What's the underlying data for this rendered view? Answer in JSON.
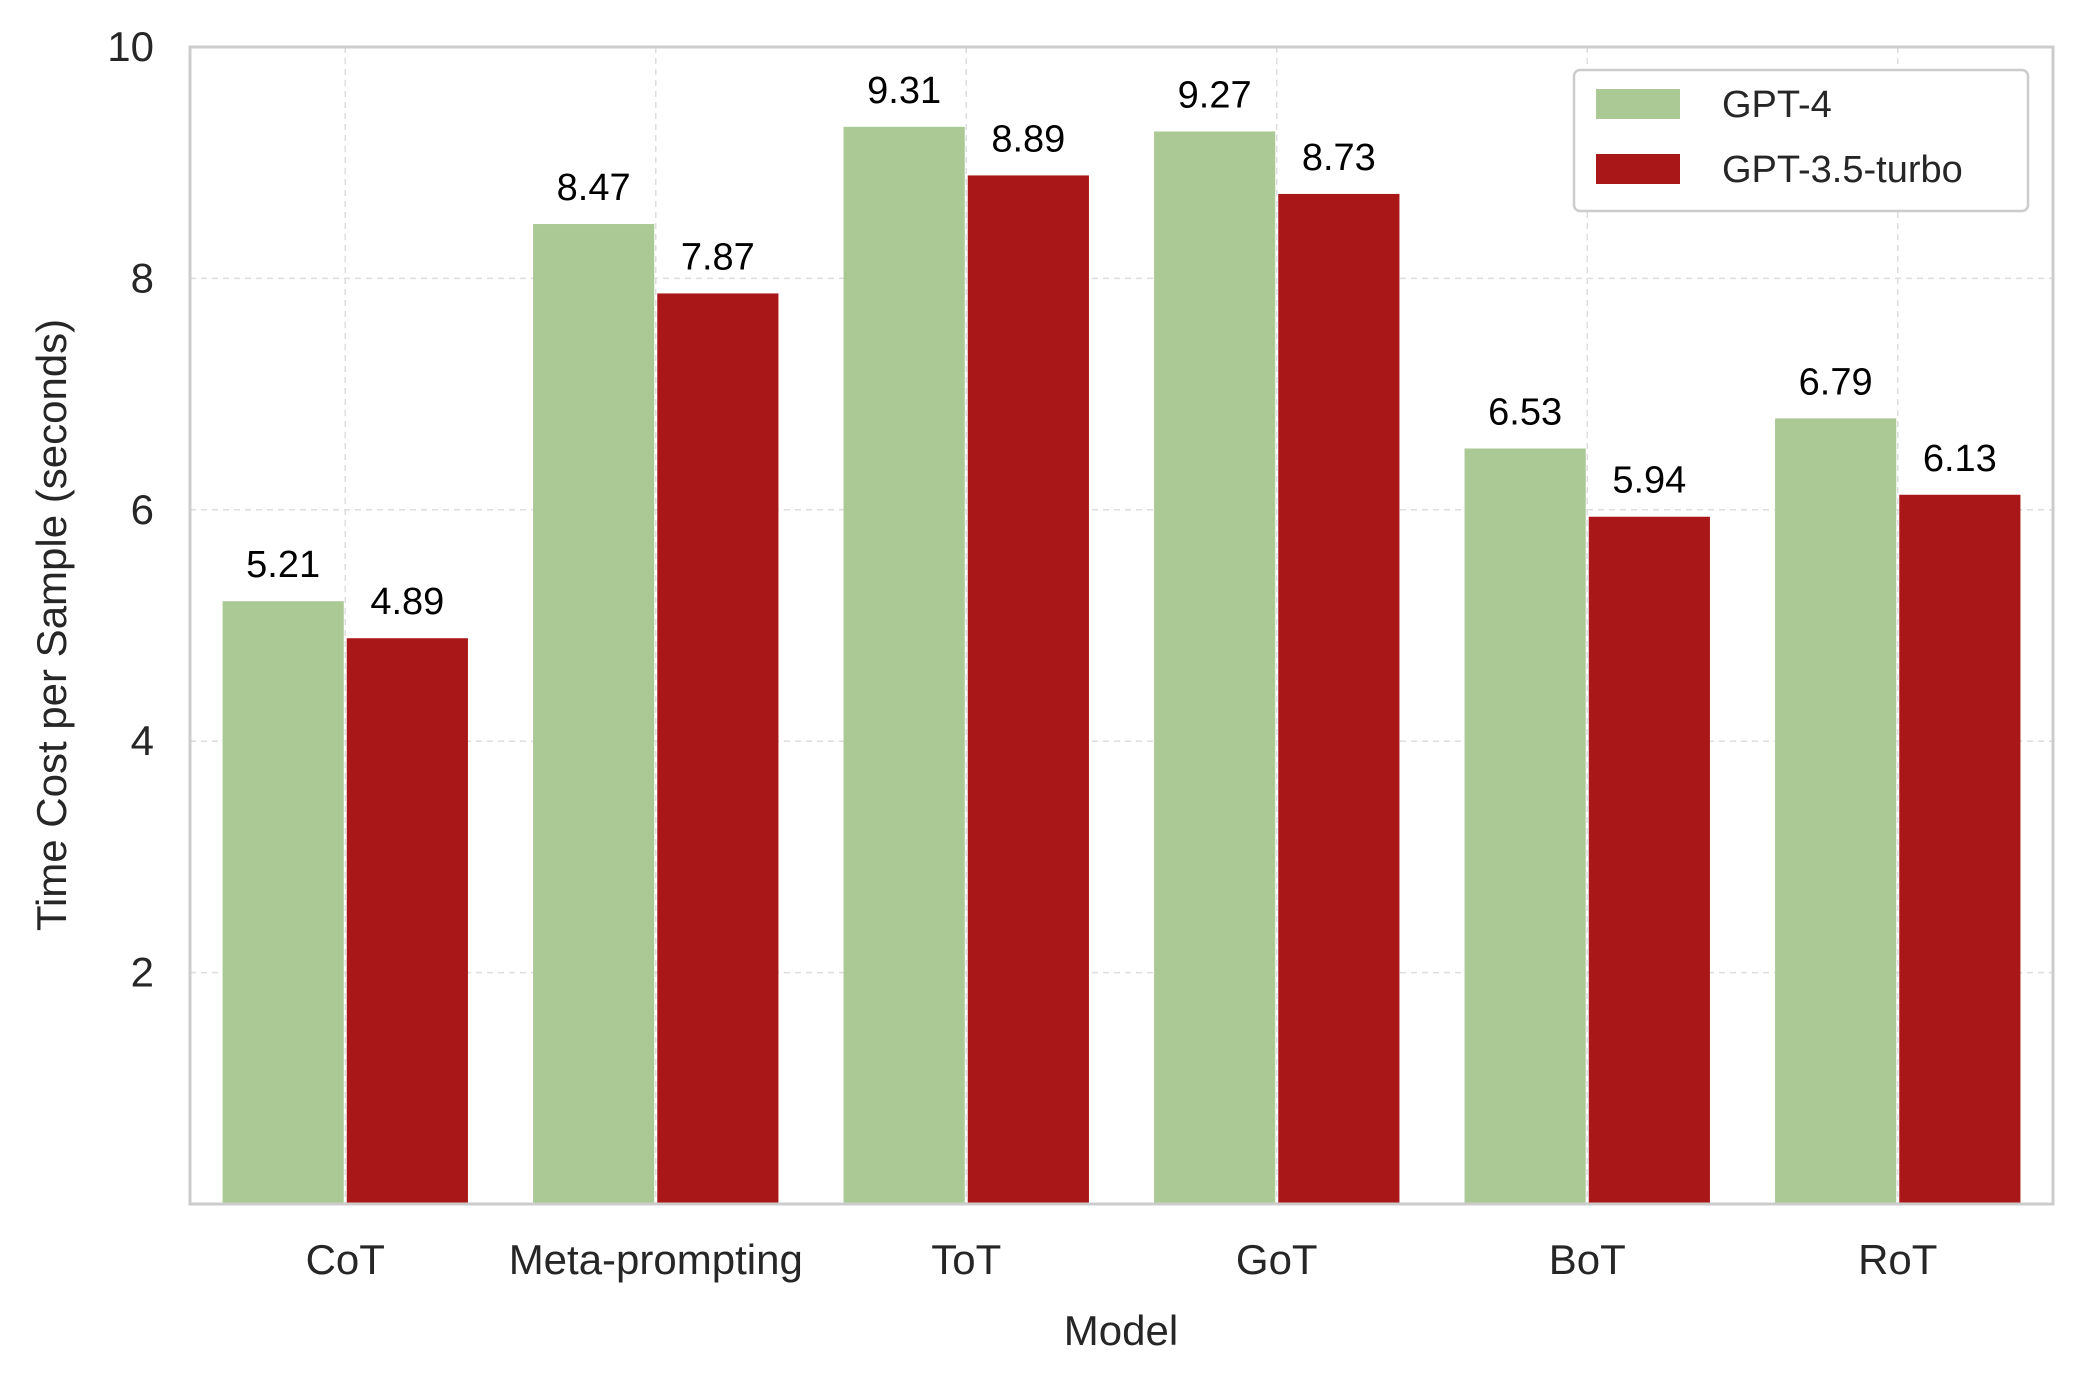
{
  "chart_data": {
    "type": "bar",
    "title": "",
    "xlabel": "Model",
    "ylabel": "Time Cost per Sample (seconds)",
    "categories": [
      "CoT",
      "Meta-prompting",
      "ToT",
      "GoT",
      "BoT",
      "RoT"
    ],
    "series": [
      {
        "name": "GPT-4",
        "color": "#abc995",
        "values": [
          5.21,
          8.47,
          9.31,
          9.27,
          6.53,
          6.79
        ],
        "labels": [
          "5.21",
          "8.47",
          "9.31",
          "9.27",
          "6.53",
          "6.79"
        ]
      },
      {
        "name": "GPT-3.5-turbo",
        "color": "#aa1719",
        "values": [
          4.89,
          7.87,
          8.89,
          8.73,
          5.94,
          6.13
        ],
        "labels": [
          "4.89",
          "7.87",
          "8.89",
          "8.73",
          "5.94",
          "6.13"
        ]
      }
    ],
    "ylim": [
      0,
      10
    ],
    "yticks": [
      2,
      4,
      6,
      8,
      10
    ],
    "ytick_labels": [
      "2",
      "4",
      "6",
      "8",
      "10"
    ],
    "grid": true,
    "legend_position": "top-right"
  }
}
